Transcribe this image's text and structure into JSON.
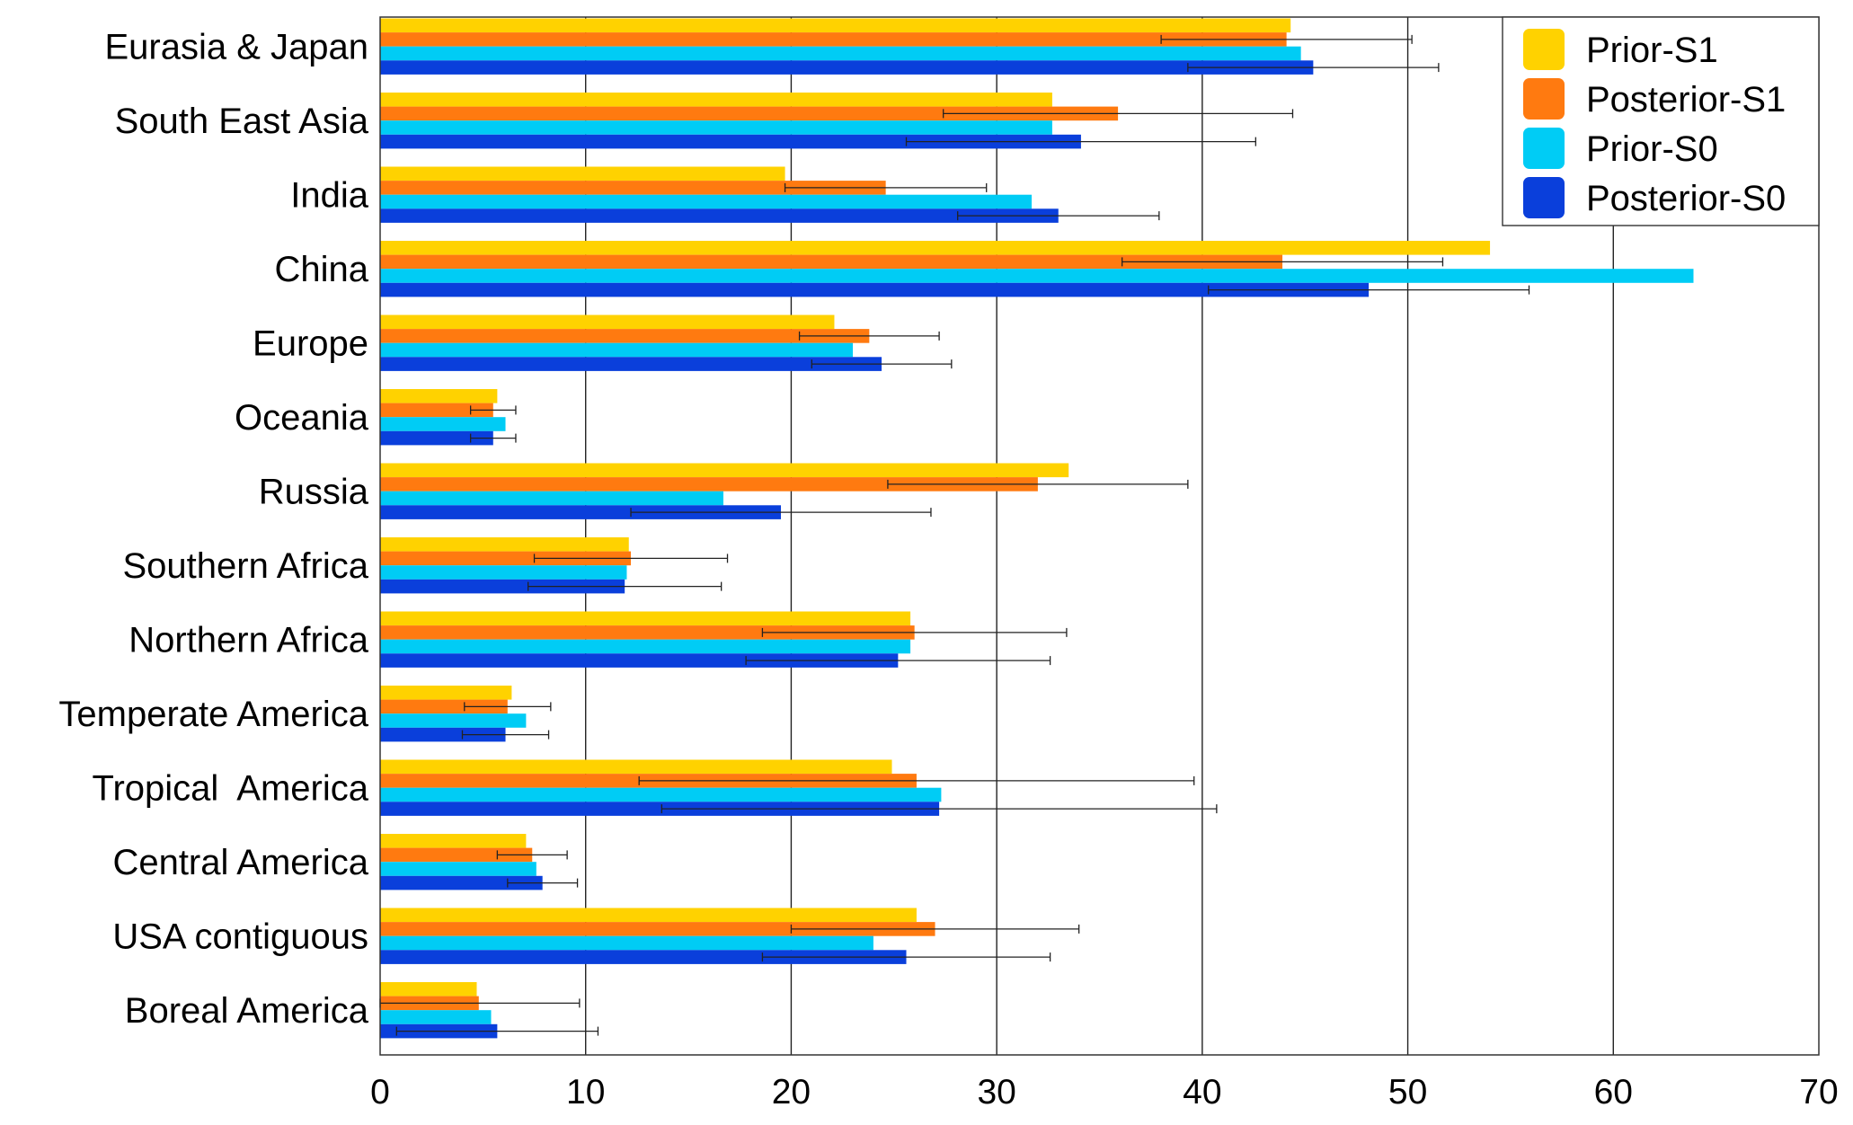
{
  "chart_data": {
    "type": "bar",
    "orientation": "horizontal",
    "title": "",
    "xlabel": "",
    "ylabel": "",
    "xlim": [
      0,
      70
    ],
    "x_ticks": [
      0,
      10,
      20,
      30,
      40,
      50,
      60,
      70
    ],
    "grid": "vertical",
    "legend_position": "top-right",
    "categories": [
      "Eurasia & Japan",
      "South East Asia",
      "India",
      "China",
      "Europe",
      "Oceania",
      "Russia",
      "Southern Africa",
      "Northern Africa",
      "Temperate America",
      "Tropical  America",
      "Central America",
      "USA contiguous",
      "Boreal America"
    ],
    "series": [
      {
        "name": "Prior-S1",
        "color": "#FFD200",
        "values": [
          44.3,
          32.7,
          19.7,
          54.0,
          22.1,
          5.7,
          33.5,
          12.1,
          25.8,
          6.4,
          24.9,
          7.1,
          26.1,
          4.7
        ],
        "errors": null
      },
      {
        "name": "Posterior-S1",
        "color": "#FF7A10",
        "values": [
          44.1,
          35.9,
          24.6,
          43.9,
          23.8,
          5.5,
          32.0,
          12.2,
          26.0,
          6.2,
          26.1,
          7.4,
          27.0,
          4.8
        ],
        "errors": [
          6.1,
          8.5,
          4.9,
          7.8,
          3.4,
          1.1,
          7.3,
          4.7,
          7.4,
          2.1,
          13.5,
          1.7,
          7.0,
          4.9
        ]
      },
      {
        "name": "Prior-S0",
        "color": "#00CCF5",
        "values": [
          44.8,
          32.7,
          31.7,
          63.9,
          23.0,
          6.1,
          16.7,
          12.0,
          25.8,
          7.1,
          27.3,
          7.6,
          24.0,
          5.4
        ]
      },
      {
        "name": "Posterior-S0",
        "color": "#0A3FDB",
        "values": [
          45.4,
          34.1,
          33.0,
          48.1,
          24.4,
          5.5,
          19.5,
          11.9,
          25.2,
          6.1,
          27.2,
          7.9,
          25.6,
          5.7
        ],
        "errors": [
          6.1,
          8.5,
          4.9,
          7.8,
          3.4,
          1.1,
          7.3,
          4.7,
          7.4,
          2.1,
          13.5,
          1.7,
          7.0,
          4.9
        ]
      }
    ]
  }
}
